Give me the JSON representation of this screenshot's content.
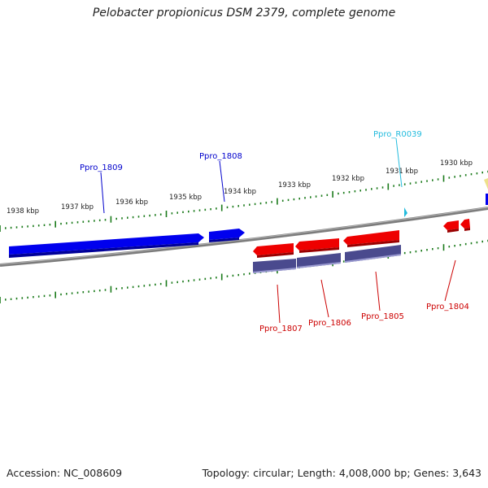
{
  "title": "Pelobacter propionicus DSM 2379, complete genome",
  "footer": {
    "accession": "Accession: NC_008609",
    "summary": "Topology: circular; Length: 4,008,000 bp; Genes: 3,643"
  },
  "colors": {
    "forward_gene": "#0000ee",
    "reverse_gene": "#ee0000",
    "rna_gene": "#22bbdd",
    "protein_bar": "#4a4a8e",
    "tick": "#1a7a1a",
    "backbone": "#888888"
  },
  "scale": {
    "labels": [
      "1938 kbp",
      "1937 kbp",
      "1936 kbp",
      "1935 kbp",
      "1934 kbp",
      "1933 kbp",
      "1932 kbp",
      "1931 kbp",
      "1930 kbp"
    ]
  },
  "genes": [
    {
      "name": "Ppro_1809",
      "strand": "forward"
    },
    {
      "name": "Ppro_1808",
      "strand": "forward"
    },
    {
      "name": "Ppro_R0039",
      "strand": "forward_rna"
    },
    {
      "name": "Ppro_1807",
      "strand": "reverse"
    },
    {
      "name": "Ppro_1806",
      "strand": "reverse"
    },
    {
      "name": "Ppro_1805",
      "strand": "reverse"
    },
    {
      "name": "Ppro_1804",
      "strand": "reverse"
    }
  ]
}
